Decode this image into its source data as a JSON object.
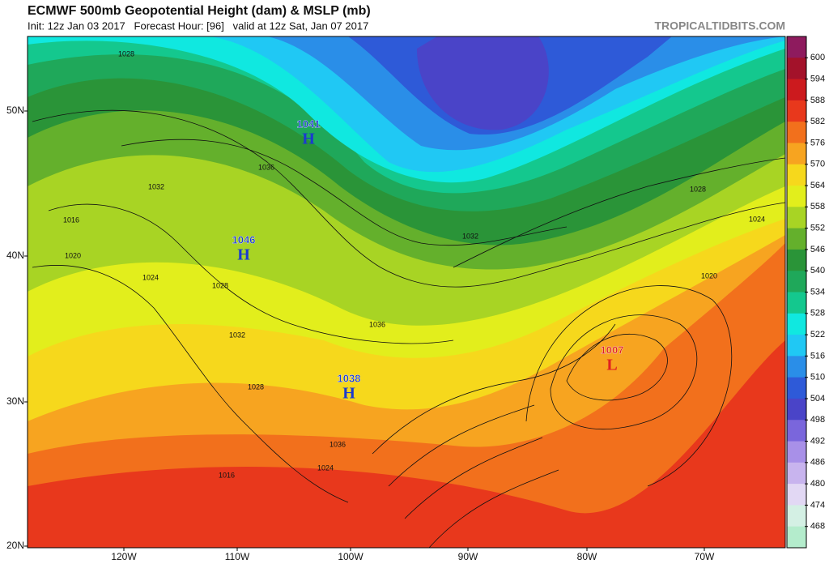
{
  "header": {
    "title": "ECMWF 500mb Geopotential Height (dam) & MSLP (mb)",
    "subtitle": "Init: 12z Jan 03 2017   Forecast Hour: [96]   valid at 12z Sat, Jan 07 2017",
    "credit": "TROPICALTIDBITS.COM"
  },
  "colorbar": {
    "labels": [
      "600",
      "594",
      "588",
      "582",
      "576",
      "570",
      "564",
      "558",
      "552",
      "546",
      "540",
      "534",
      "528",
      "522",
      "516",
      "510",
      "504",
      "498",
      "492",
      "486",
      "480",
      "474",
      "468"
    ],
    "colors": [
      "#8e1b5e",
      "#a3122a",
      "#cc1a1e",
      "#e8381c",
      "#f2701c",
      "#f7a420",
      "#f6d81c",
      "#e2ee1c",
      "#a8d424",
      "#64b02c",
      "#2a9438",
      "#1fa85a",
      "#14c88e",
      "#10e8e0",
      "#20c8f4",
      "#2a8ee8",
      "#2e5ad8",
      "#4a44c8",
      "#7a66dc",
      "#a890e8",
      "#c8b4ee",
      "#e2d8f4",
      "#d4f0e4",
      "#b4eccc"
    ]
  },
  "map": {
    "lat_labels": [
      "50N",
      "40N",
      "30N",
      "20N"
    ],
    "lon_labels": [
      "120W",
      "110W",
      "100W",
      "90W",
      "80W",
      "70W"
    ],
    "centers": [
      {
        "value": "1041",
        "symbol": "H"
      },
      {
        "value": "1046",
        "symbol": "H"
      },
      {
        "value": "1038",
        "symbol": "H"
      },
      {
        "value": "1007",
        "symbol": "L"
      }
    ],
    "contour_labels": [
      "1028",
      "1032",
      "1016",
      "1020",
      "1024",
      "1028",
      "1036",
      "1032",
      "1036",
      "1032",
      "1028",
      "1036",
      "1024",
      "1016",
      "1028",
      "1024",
      "1020"
    ]
  }
}
